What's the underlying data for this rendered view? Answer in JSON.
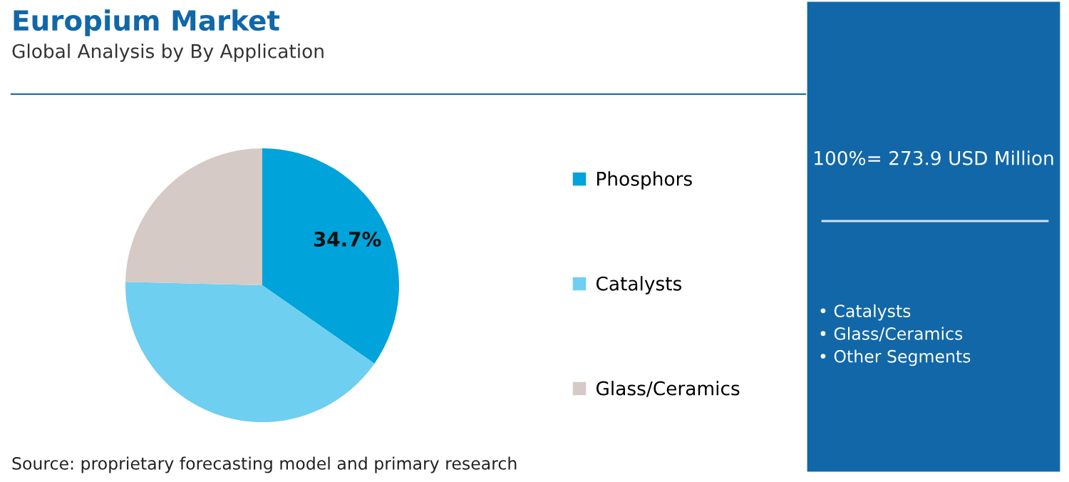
{
  "chart_data": {
    "type": "pie",
    "title": "Europium Market",
    "subtitle": "Global Analysis by By Application",
    "categories": [
      "Phosphors",
      "Catalysts",
      "Glass/Ceramics"
    ],
    "values": [
      34.7,
      40.7,
      24.6
    ],
    "colors": [
      "#00a3da",
      "#6ecff0",
      "#d5cac5"
    ],
    "value_labels": [
      "34.7%",
      null,
      null
    ],
    "legend": "right",
    "annotations": [
      "100%= 273.9 USD Million",
      "• Catalysts\n• Glass/Ceramics\n• Other Segments",
      "Source: proprietary forecasting model and primary research"
    ]
  }
}
